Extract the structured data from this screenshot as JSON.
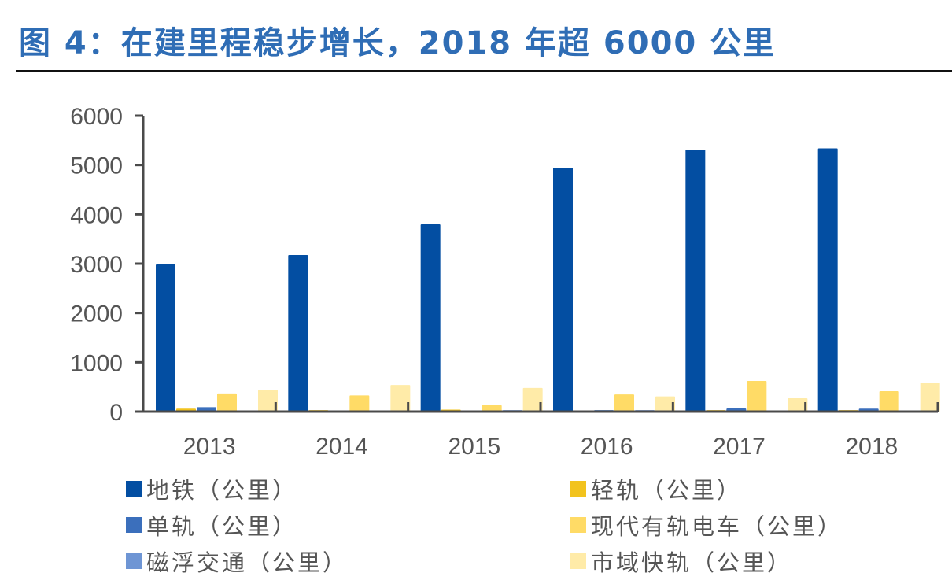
{
  "header": {
    "title": "图 4：在建里程稳步增长，2018 年超 6000 公里"
  },
  "chart_data": {
    "type": "bar",
    "title": "图 4：在建里程稳步增长，2018 年超 6000 公里",
    "xlabel": "",
    "ylabel": "",
    "ylim": [
      0,
      6000
    ],
    "yticks": [
      0,
      1000,
      2000,
      3000,
      4000,
      5000,
      6000
    ],
    "categories": [
      "2013",
      "2014",
      "2015",
      "2016",
      "2017",
      "2018"
    ],
    "legend_position": "bottom",
    "grid": false,
    "series": [
      {
        "name": "地铁（公里）",
        "color": "#034EA2",
        "values": [
          2984,
          3176,
          3798,
          4947,
          5314,
          5338
        ]
      },
      {
        "name": "轻轨（公里）",
        "color": "#F2C31E",
        "values": [
          60,
          30,
          40,
          20,
          30,
          30
        ]
      },
      {
        "name": "单轨（公里）",
        "color": "#3B6FBC",
        "values": [
          90,
          20,
          20,
          30,
          64,
          60
        ]
      },
      {
        "name": "现代有轨电车（公里）",
        "color": "#FFDB66",
        "values": [
          370,
          330,
          130,
          350,
          622,
          415
        ]
      },
      {
        "name": "磁浮交通（公里）",
        "color": "#6E95D4",
        "values": [
          20,
          20,
          30,
          30,
          10,
          20
        ]
      },
      {
        "name": "市域快轨（公里）",
        "color": "#FFEBA8",
        "values": [
          440,
          540,
          480,
          310,
          271,
          590
        ]
      }
    ]
  },
  "legend": {
    "items": [
      {
        "label": "地铁（公里）",
        "color": "#034EA2"
      },
      {
        "label": "轻轨（公里）",
        "color": "#F2C31E"
      },
      {
        "label": "单轨（公里）",
        "color": "#3B6FBC"
      },
      {
        "label": "现代有轨电车（公里）",
        "color": "#FFDB66"
      },
      {
        "label": "磁浮交通（公里）",
        "color": "#6E95D4"
      },
      {
        "label": "市域快轨（公里）",
        "color": "#FFEBA8"
      }
    ]
  }
}
